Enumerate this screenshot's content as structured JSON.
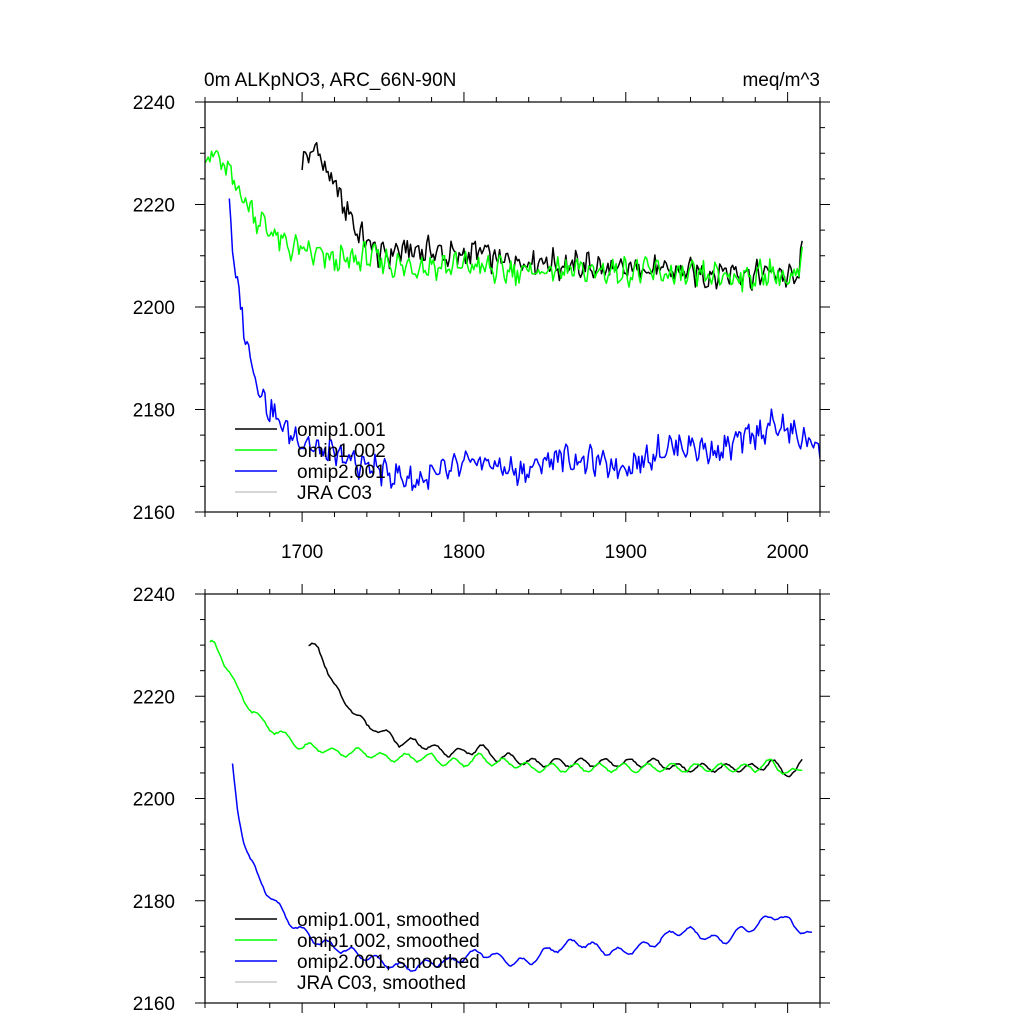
{
  "chart_data": [
    {
      "type": "line",
      "title_left": "0m ALKpNO3, ARC_66N-90N",
      "title_right": "meq/m^3",
      "xlim": [
        1640,
        2020
      ],
      "ylim": [
        2160,
        2240
      ],
      "x_ticks": [
        1700,
        1800,
        1900,
        2000
      ],
      "x_tick_labels": [
        "1700",
        "1800",
        "1900",
        "2000"
      ],
      "y_ticks": [
        2160,
        2180,
        2200,
        2220,
        2240
      ],
      "y_tick_labels": [
        "2160",
        "2180",
        "2200",
        "2220",
        "2240"
      ],
      "legend_position": "lower-left",
      "series": [
        {
          "name": "omip1.001",
          "color": "#000000",
          "style": "noisy",
          "points": [
            [
              1700,
              2228
            ],
            [
              1705,
              2230
            ],
            [
              1710,
              2231
            ],
            [
              1715,
              2226
            ],
            [
              1720,
              2224
            ],
            [
              1725,
              2220
            ],
            [
              1730,
              2218
            ],
            [
              1735,
              2214
            ],
            [
              1740,
              2213
            ],
            [
              1745,
              2211
            ],
            [
              1750,
              2210
            ],
            [
              1760,
              2211
            ],
            [
              1770,
              2211
            ],
            [
              1780,
              2211
            ],
            [
              1790,
              2210
            ],
            [
              1800,
              2210
            ],
            [
              1810,
              2211
            ],
            [
              1820,
              2209
            ],
            [
              1830,
              2209
            ],
            [
              1840,
              2209
            ],
            [
              1850,
              2209
            ],
            [
              1860,
              2208
            ],
            [
              1870,
              2208
            ],
            [
              1880,
              2208
            ],
            [
              1890,
              2207
            ],
            [
              1900,
              2207
            ],
            [
              1910,
              2208
            ],
            [
              1920,
              2207
            ],
            [
              1930,
              2207
            ],
            [
              1940,
              2207
            ],
            [
              1950,
              2206
            ],
            [
              1960,
              2207
            ],
            [
              1970,
              2207
            ],
            [
              1980,
              2206
            ],
            [
              1990,
              2207
            ],
            [
              2000,
              2206
            ],
            [
              2005,
              2205
            ],
            [
              2009,
              2210
            ]
          ]
        },
        {
          "name": "omip1.002",
          "color": "#00ff00",
          "style": "noisy",
          "points": [
            [
              1640,
              2229
            ],
            [
              1645,
              2230
            ],
            [
              1650,
              2228
            ],
            [
              1655,
              2226
            ],
            [
              1660,
              2223
            ],
            [
              1665,
              2221
            ],
            [
              1670,
              2218
            ],
            [
              1680,
              2215
            ],
            [
              1690,
              2212
            ],
            [
              1700,
              2211
            ],
            [
              1710,
              2210
            ],
            [
              1720,
              2209
            ],
            [
              1730,
              2209
            ],
            [
              1740,
              2210
            ],
            [
              1750,
              2209
            ],
            [
              1760,
              2208
            ],
            [
              1770,
              2208
            ],
            [
              1780,
              2208
            ],
            [
              1790,
              2208
            ],
            [
              1800,
              2208
            ],
            [
              1810,
              2208
            ],
            [
              1820,
              2207
            ],
            [
              1830,
              2207
            ],
            [
              1840,
              2207
            ],
            [
              1850,
              2207
            ],
            [
              1860,
              2207
            ],
            [
              1870,
              2207
            ],
            [
              1880,
              2207
            ],
            [
              1890,
              2207
            ],
            [
              1900,
              2207
            ],
            [
              1910,
              2207
            ],
            [
              1920,
              2207
            ],
            [
              1930,
              2206
            ],
            [
              1940,
              2206
            ],
            [
              1950,
              2206
            ],
            [
              1960,
              2206
            ],
            [
              1970,
              2206
            ],
            [
              1980,
              2206
            ],
            [
              1990,
              2207
            ],
            [
              2000,
              2205
            ],
            [
              2005,
              2205
            ],
            [
              2009,
              2210
            ]
          ]
        },
        {
          "name": "omip2.001",
          "color": "#0000ff",
          "style": "noisy",
          "points": [
            [
              1655,
              2221
            ],
            [
              1658,
              2208
            ],
            [
              1662,
              2200
            ],
            [
              1666,
              2193
            ],
            [
              1670,
              2188
            ],
            [
              1675,
              2183
            ],
            [
              1680,
              2180
            ],
            [
              1690,
              2176
            ],
            [
              1700,
              2174
            ],
            [
              1710,
              2172
            ],
            [
              1720,
              2171
            ],
            [
              1730,
              2170
            ],
            [
              1740,
              2169
            ],
            [
              1750,
              2168
            ],
            [
              1760,
              2167
            ],
            [
              1770,
              2166
            ],
            [
              1780,
              2167
            ],
            [
              1790,
              2168
            ],
            [
              1800,
              2169
            ],
            [
              1810,
              2170
            ],
            [
              1820,
              2169
            ],
            [
              1830,
              2168
            ],
            [
              1840,
              2168
            ],
            [
              1850,
              2170
            ],
            [
              1860,
              2171
            ],
            [
              1870,
              2170
            ],
            [
              1880,
              2170
            ],
            [
              1890,
              2169
            ],
            [
              1900,
              2169
            ],
            [
              1910,
              2170
            ],
            [
              1920,
              2172
            ],
            [
              1930,
              2173
            ],
            [
              1940,
              2173
            ],
            [
              1950,
              2172
            ],
            [
              1960,
              2172
            ],
            [
              1970,
              2174
            ],
            [
              1980,
              2175
            ],
            [
              1990,
              2177
            ],
            [
              2000,
              2176
            ],
            [
              2010,
              2174
            ],
            [
              2020,
              2173
            ]
          ]
        },
        {
          "name": "JRA C03",
          "color": "#c8c8c8",
          "style": "noisy",
          "points": []
        }
      ]
    },
    {
      "type": "line",
      "xlim": [
        1640,
        2020
      ],
      "ylim": [
        2160,
        2240
      ],
      "y_ticks": [
        2160,
        2180,
        2200,
        2220,
        2240
      ],
      "y_tick_labels": [
        "2160",
        "2180",
        "2200",
        "2220",
        "2240"
      ],
      "legend_position": "lower-left",
      "series": [
        {
          "name": "omip1.001, smoothed",
          "color": "#000000",
          "style": "smooth",
          "points": [
            [
              1704,
              2230
            ],
            [
              1710,
              2229
            ],
            [
              1715,
              2226
            ],
            [
              1720,
              2222
            ],
            [
              1725,
              2219
            ],
            [
              1730,
              2218
            ],
            [
              1735,
              2216
            ],
            [
              1740,
              2214
            ],
            [
              1745,
              2214
            ],
            [
              1750,
              2213
            ],
            [
              1760,
              2211
            ],
            [
              1770,
              2211
            ],
            [
              1780,
              2210
            ],
            [
              1790,
              2209
            ],
            [
              1800,
              2209
            ],
            [
              1810,
              2210
            ],
            [
              1820,
              2208
            ],
            [
              1830,
              2208
            ],
            [
              1840,
              2207
            ],
            [
              1850,
              2207
            ],
            [
              1860,
              2207
            ],
            [
              1870,
              2207
            ],
            [
              1880,
              2207
            ],
            [
              1890,
              2207
            ],
            [
              1900,
              2207
            ],
            [
              1910,
              2207
            ],
            [
              1920,
              2207
            ],
            [
              1930,
              2206
            ],
            [
              1940,
              2206
            ],
            [
              1950,
              2206
            ],
            [
              1960,
              2206
            ],
            [
              1970,
              2206
            ],
            [
              1980,
              2206
            ],
            [
              1990,
              2207
            ],
            [
              2000,
              2205
            ],
            [
              2005,
              2205
            ],
            [
              2009,
              2207
            ]
          ]
        },
        {
          "name": "omip1.002, smoothed",
          "color": "#00ff00",
          "style": "smooth",
          "points": [
            [
              1643,
              2230
            ],
            [
              1646,
              2230
            ],
            [
              1650,
              2228
            ],
            [
              1655,
              2225
            ],
            [
              1660,
              2221
            ],
            [
              1665,
              2219
            ],
            [
              1670,
              2217
            ],
            [
              1675,
              2215
            ],
            [
              1680,
              2214
            ],
            [
              1690,
              2212
            ],
            [
              1700,
              2210
            ],
            [
              1710,
              2210
            ],
            [
              1720,
              2209
            ],
            [
              1730,
              2209
            ],
            [
              1740,
              2209
            ],
            [
              1750,
              2208
            ],
            [
              1760,
              2208
            ],
            [
              1770,
              2208
            ],
            [
              1780,
              2208
            ],
            [
              1790,
              2207
            ],
            [
              1800,
              2207
            ],
            [
              1810,
              2208
            ],
            [
              1820,
              2207
            ],
            [
              1830,
              2207
            ],
            [
              1840,
              2206
            ],
            [
              1850,
              2206
            ],
            [
              1860,
              2206
            ],
            [
              1870,
              2206
            ],
            [
              1880,
              2206
            ],
            [
              1890,
              2206
            ],
            [
              1900,
              2206
            ],
            [
              1910,
              2206
            ],
            [
              1920,
              2206
            ],
            [
              1930,
              2206
            ],
            [
              1940,
              2206
            ],
            [
              1950,
              2206
            ],
            [
              1960,
              2206
            ],
            [
              1970,
              2206
            ],
            [
              1980,
              2206
            ],
            [
              1990,
              2207
            ],
            [
              2000,
              2205
            ],
            [
              2005,
              2205
            ],
            [
              2009,
              2206
            ]
          ]
        },
        {
          "name": "omip2.001, smoothed",
          "color": "#0000ff",
          "style": "smooth",
          "points": [
            [
              1657,
              2206
            ],
            [
              1660,
              2198
            ],
            [
              1664,
              2192
            ],
            [
              1668,
              2188
            ],
            [
              1672,
              2185
            ],
            [
              1678,
              2182
            ],
            [
              1685,
              2179
            ],
            [
              1692,
              2176
            ],
            [
              1700,
              2174
            ],
            [
              1710,
              2172
            ],
            [
              1720,
              2171
            ],
            [
              1730,
              2170
            ],
            [
              1740,
              2169
            ],
            [
              1750,
              2168
            ],
            [
              1760,
              2167
            ],
            [
              1770,
              2167
            ],
            [
              1780,
              2168
            ],
            [
              1790,
              2168
            ],
            [
              1800,
              2169
            ],
            [
              1810,
              2170
            ],
            [
              1820,
              2169
            ],
            [
              1830,
              2168
            ],
            [
              1840,
              2168
            ],
            [
              1850,
              2170
            ],
            [
              1860,
              2171
            ],
            [
              1870,
              2172
            ],
            [
              1880,
              2171
            ],
            [
              1890,
              2170
            ],
            [
              1900,
              2170
            ],
            [
              1910,
              2171
            ],
            [
              1920,
              2172
            ],
            [
              1930,
              2174
            ],
            [
              1940,
              2174
            ],
            [
              1950,
              2173
            ],
            [
              1960,
              2172
            ],
            [
              1970,
              2174
            ],
            [
              1980,
              2175
            ],
            [
              1990,
              2177
            ],
            [
              1995,
              2177
            ],
            [
              2000,
              2176
            ],
            [
              2010,
              2174
            ],
            [
              2015,
              2173
            ]
          ]
        },
        {
          "name": "JRA C03, smoothed",
          "color": "#c8c8c8",
          "style": "smooth",
          "points": []
        }
      ]
    }
  ]
}
